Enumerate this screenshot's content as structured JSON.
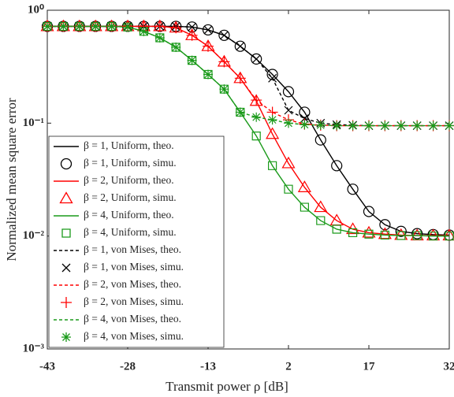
{
  "chart_data": {
    "type": "line",
    "xlabel": "Transmit power ρ [dB]",
    "ylabel": "Normalized mean square error",
    "xlim": [
      -43,
      32
    ],
    "xticks": [
      -43,
      -28,
      -13,
      2,
      17,
      32
    ],
    "ylim": [
      0.001,
      1
    ],
    "yscale": "log",
    "yticks": [
      {
        "value": 1,
        "label": "10⁰"
      },
      {
        "value": 0.1,
        "label": "10⁻¹"
      },
      {
        "value": 0.01,
        "label": "10⁻²"
      },
      {
        "value": 0.001,
        "label": "10⁻³"
      }
    ],
    "legend": "lower left",
    "x": [
      -43,
      -40,
      -37,
      -34,
      -31,
      -28,
      -25,
      -22,
      -19,
      -16,
      -13,
      -10,
      -7,
      -4,
      -1,
      2,
      5,
      8,
      11,
      14,
      17,
      20,
      23,
      26,
      29,
      32
    ],
    "series": [
      {
        "name": "β = 1, Uniform, theo.",
        "color": "#000000",
        "dash": "solid",
        "marker": "none",
        "values": [
          0.72,
          0.72,
          0.72,
          0.72,
          0.72,
          0.72,
          0.72,
          0.72,
          0.72,
          0.71,
          0.67,
          0.6,
          0.48,
          0.37,
          0.27,
          0.19,
          0.125,
          0.071,
          0.042,
          0.026,
          0.0165,
          0.0126,
          0.011,
          0.0105,
          0.0103,
          0.0102
        ]
      },
      {
        "name": "β = 1, Uniform, simu.",
        "color": "#000000",
        "dash": "none",
        "marker": "circle",
        "values": [
          0.72,
          0.72,
          0.72,
          0.72,
          0.72,
          0.72,
          0.72,
          0.72,
          0.72,
          0.71,
          0.67,
          0.6,
          0.48,
          0.37,
          0.27,
          0.19,
          0.125,
          0.071,
          0.042,
          0.026,
          0.0165,
          0.0126,
          0.011,
          0.0105,
          0.0103,
          0.0102
        ]
      },
      {
        "name": "β = 2, Uniform, theo.",
        "color": "#ff0000",
        "dash": "solid",
        "marker": "none",
        "values": [
          0.72,
          0.72,
          0.72,
          0.72,
          0.72,
          0.72,
          0.72,
          0.72,
          0.7,
          0.6,
          0.48,
          0.35,
          0.25,
          0.157,
          0.08,
          0.044,
          0.027,
          0.018,
          0.0137,
          0.0115,
          0.0107,
          0.0104,
          0.0102,
          0.0101,
          0.0101,
          0.0101
        ]
      },
      {
        "name": "β = 2, Uniform, simu.",
        "color": "#ff0000",
        "dash": "none",
        "marker": "triangle",
        "values": [
          0.72,
          0.72,
          0.72,
          0.72,
          0.72,
          0.72,
          0.72,
          0.72,
          0.7,
          0.6,
          0.48,
          0.35,
          0.25,
          0.157,
          0.08,
          0.044,
          0.027,
          0.018,
          0.0137,
          0.0115,
          0.0107,
          0.0104,
          0.0102,
          0.0101,
          0.0101,
          0.0101
        ]
      },
      {
        "name": "β = 4, Uniform, theo.",
        "color": "#1a9a1a",
        "dash": "solid",
        "marker": "none",
        "values": [
          0.72,
          0.72,
          0.72,
          0.72,
          0.72,
          0.71,
          0.65,
          0.57,
          0.47,
          0.36,
          0.27,
          0.2,
          0.125,
          0.077,
          0.042,
          0.026,
          0.018,
          0.0137,
          0.0115,
          0.0107,
          0.0104,
          0.0102,
          0.0101,
          0.0101,
          0.01,
          0.01
        ]
      },
      {
        "name": "β = 4, Uniform, simu.",
        "color": "#1a9a1a",
        "dash": "none",
        "marker": "square",
        "values": [
          0.72,
          0.72,
          0.72,
          0.72,
          0.72,
          0.71,
          0.65,
          0.57,
          0.47,
          0.36,
          0.27,
          0.2,
          0.125,
          0.077,
          0.042,
          0.026,
          0.018,
          0.0137,
          0.0115,
          0.0107,
          0.0104,
          0.0102,
          0.0101,
          0.0101,
          0.01,
          0.01
        ]
      },
      {
        "name": "β = 1, von Mises, theo.",
        "color": "#000000",
        "dash": "dashed",
        "marker": "none",
        "values": [
          0.72,
          0.72,
          0.72,
          0.72,
          0.72,
          0.72,
          0.72,
          0.72,
          0.72,
          0.71,
          0.67,
          0.6,
          0.48,
          0.37,
          0.25,
          0.13,
          0.11,
          0.1,
          0.097,
          0.096,
          0.095,
          0.095,
          0.095,
          0.095,
          0.095,
          0.095
        ]
      },
      {
        "name": "β = 1, von Mises, simu.",
        "color": "#000000",
        "dash": "none",
        "marker": "x",
        "values": [
          0.72,
          0.72,
          0.72,
          0.72,
          0.72,
          0.72,
          0.72,
          0.72,
          0.72,
          0.71,
          0.67,
          0.6,
          0.48,
          0.37,
          0.25,
          0.13,
          0.11,
          0.1,
          0.097,
          0.096,
          0.095,
          0.095,
          0.095,
          0.095,
          0.095,
          0.095
        ]
      },
      {
        "name": "β = 2, von Mises, theo.",
        "color": "#ff0000",
        "dash": "dashed",
        "marker": "none",
        "values": [
          0.72,
          0.72,
          0.72,
          0.72,
          0.72,
          0.72,
          0.72,
          0.72,
          0.7,
          0.6,
          0.48,
          0.35,
          0.25,
          0.16,
          0.125,
          0.107,
          0.098,
          0.096,
          0.095,
          0.095,
          0.095,
          0.095,
          0.095,
          0.095,
          0.095,
          0.095
        ]
      },
      {
        "name": "β = 2, von Mises, simu.",
        "color": "#ff0000",
        "dash": "none",
        "marker": "plus",
        "values": [
          0.72,
          0.72,
          0.72,
          0.72,
          0.72,
          0.72,
          0.72,
          0.72,
          0.7,
          0.6,
          0.48,
          0.35,
          0.25,
          0.16,
          0.125,
          0.107,
          0.098,
          0.096,
          0.095,
          0.095,
          0.095,
          0.095,
          0.095,
          0.095,
          0.095,
          0.095
        ]
      },
      {
        "name": "β = 4, von Mises, theo.",
        "color": "#1a9a1a",
        "dash": "dashed",
        "marker": "none",
        "values": [
          0.72,
          0.72,
          0.72,
          0.72,
          0.72,
          0.71,
          0.65,
          0.57,
          0.47,
          0.36,
          0.27,
          0.2,
          0.125,
          0.113,
          0.107,
          0.1,
          0.097,
          0.096,
          0.095,
          0.095,
          0.095,
          0.095,
          0.095,
          0.095,
          0.095,
          0.095
        ]
      },
      {
        "name": "β = 4, von Mises, simu.",
        "color": "#1a9a1a",
        "dash": "none",
        "marker": "asterisk",
        "values": [
          0.72,
          0.72,
          0.72,
          0.72,
          0.72,
          0.71,
          0.65,
          0.57,
          0.47,
          0.36,
          0.27,
          0.2,
          0.125,
          0.113,
          0.107,
          0.1,
          0.097,
          0.096,
          0.095,
          0.095,
          0.095,
          0.095,
          0.095,
          0.095,
          0.095,
          0.095
        ]
      }
    ]
  }
}
